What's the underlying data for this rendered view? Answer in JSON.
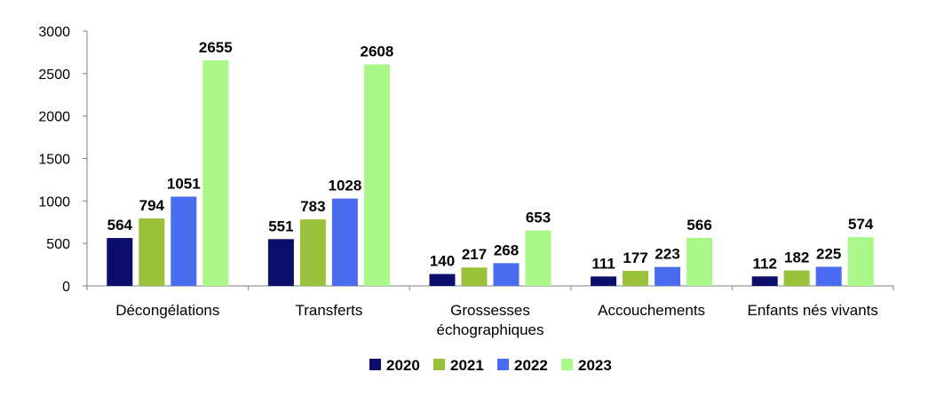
{
  "chart_data": {
    "type": "bar",
    "title": "",
    "xlabel": "",
    "ylabel": "",
    "ylim": [
      0,
      3000
    ],
    "yticks": [
      0,
      500,
      1000,
      1500,
      2000,
      2500,
      3000
    ],
    "grid": false,
    "legend_position": "bottom",
    "categories": [
      [
        "Décongélations"
      ],
      [
        "Transferts"
      ],
      [
        "Grossesses",
        "échographiques"
      ],
      [
        "Accouchements"
      ],
      [
        "Enfants nés vivants"
      ]
    ],
    "series": [
      {
        "name": "2020",
        "color": "#0b0f6b",
        "values": [
          564,
          551,
          140,
          111,
          112
        ]
      },
      {
        "name": "2021",
        "color": "#99c13a",
        "values": [
          794,
          783,
          217,
          177,
          182
        ]
      },
      {
        "name": "2022",
        "color": "#4a6cf0",
        "values": [
          1051,
          1028,
          268,
          223,
          225
        ]
      },
      {
        "name": "2023",
        "color": "#a8f787",
        "values": [
          2655,
          2608,
          653,
          566,
          574
        ]
      }
    ]
  }
}
